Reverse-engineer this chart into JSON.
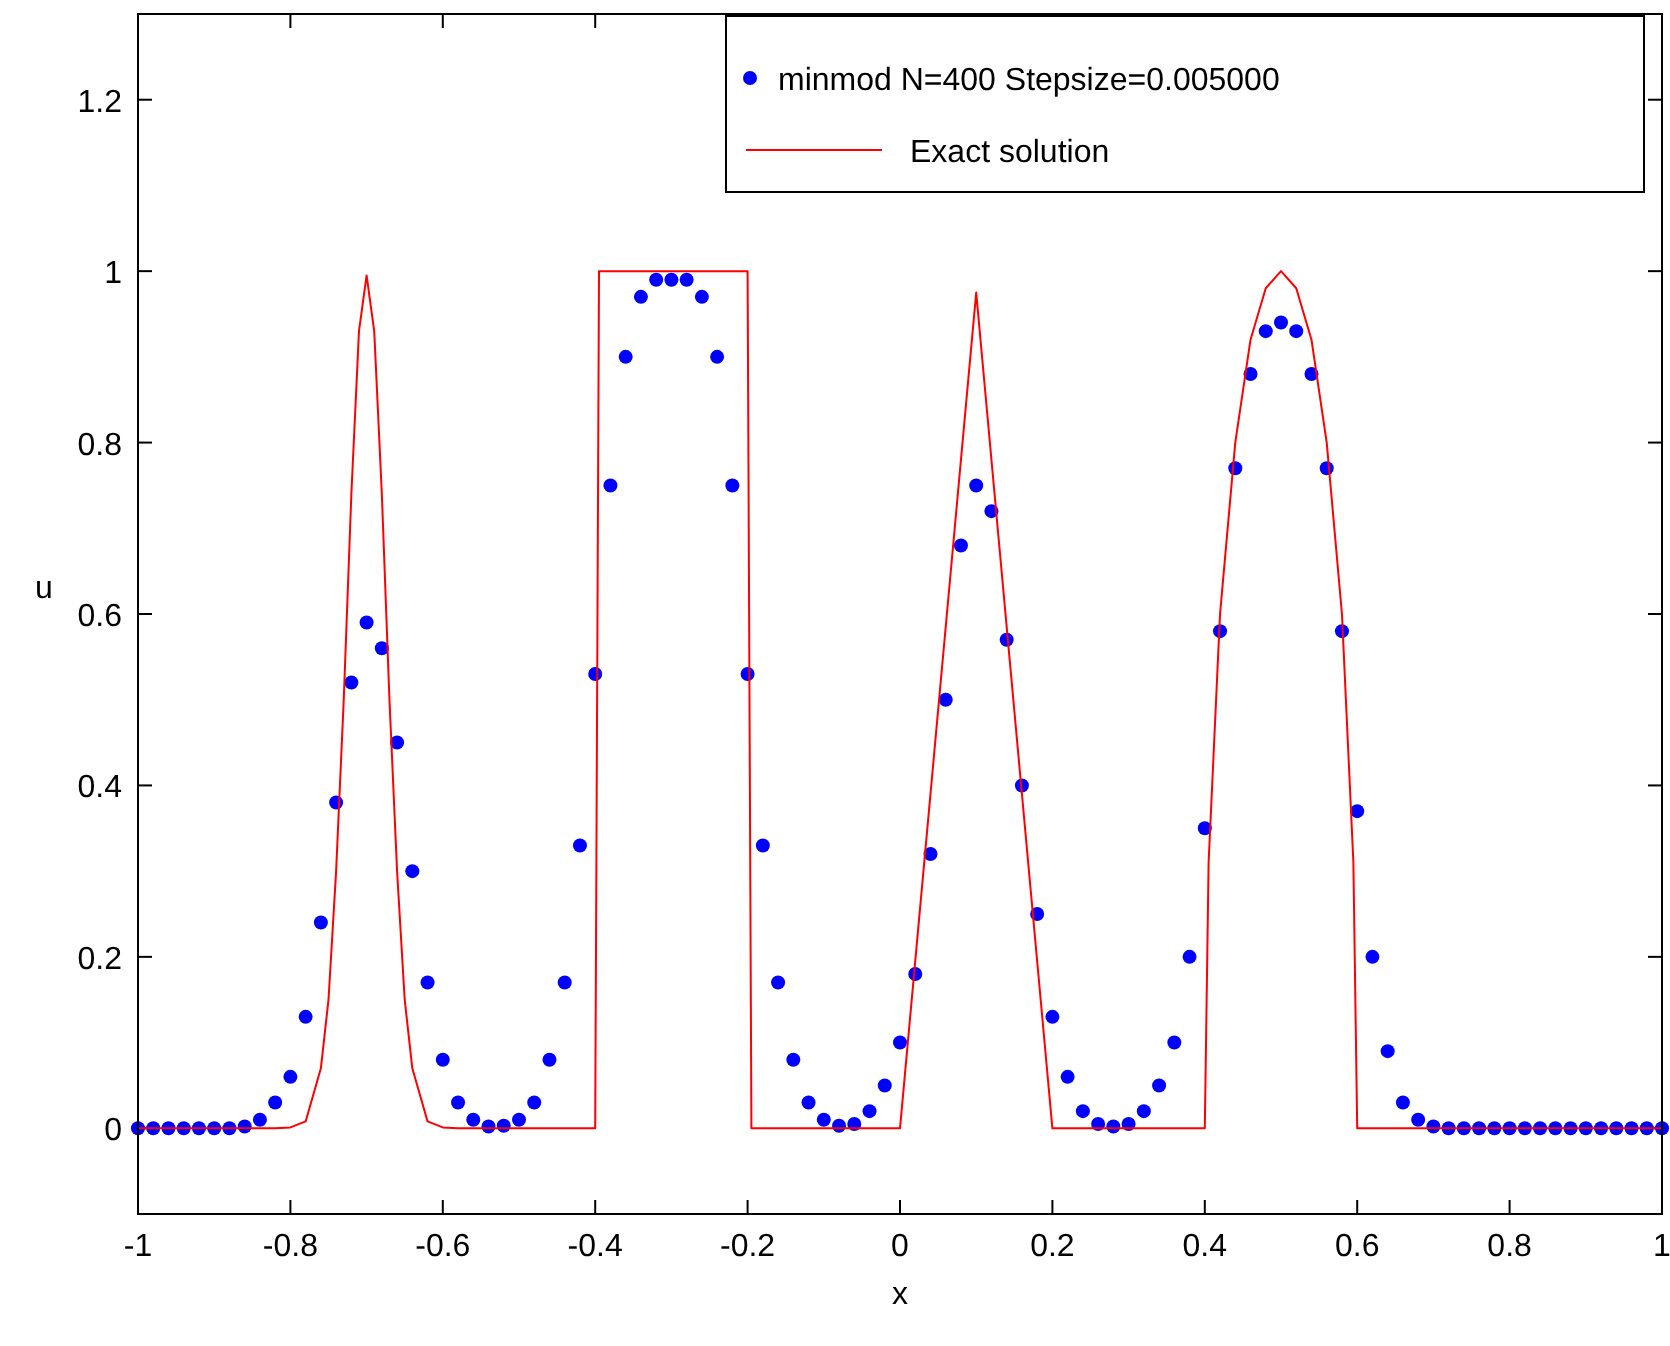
{
  "chart_data": {
    "type": "scatter",
    "xlabel": "x",
    "ylabel": "u",
    "xlim": [
      -1,
      1
    ],
    "ylim": [
      -0.1,
      1.3
    ],
    "xticks": [
      -1,
      -0.8,
      -0.6,
      -0.4,
      -0.2,
      0,
      0.2,
      0.4,
      0.6,
      0.8,
      1
    ],
    "yticks": [
      0,
      0.2,
      0.4,
      0.6,
      0.8,
      1,
      1.2
    ],
    "grid": false,
    "legend": "top right",
    "series": [
      {
        "name": "minmod N=400 Stepsize=0.005000",
        "marker": "circle",
        "color": "#0000ff",
        "x": [
          -1,
          -0.98,
          -0.96,
          -0.94,
          -0.92,
          -0.9,
          -0.88,
          -0.86,
          -0.84,
          -0.82,
          -0.8,
          -0.78,
          -0.76,
          -0.74,
          -0.72,
          -0.7,
          -0.68,
          -0.66,
          -0.64,
          -0.62,
          -0.6,
          -0.58,
          -0.56,
          -0.54,
          -0.52,
          -0.5,
          -0.48,
          -0.46,
          -0.44,
          -0.42,
          -0.4,
          -0.38,
          -0.36,
          -0.34,
          -0.32,
          -0.3,
          -0.28,
          -0.26,
          -0.24,
          -0.22,
          -0.2,
          -0.18,
          -0.16,
          -0.14,
          -0.12,
          -0.1,
          -0.08,
          -0.06,
          -0.04,
          -0.02,
          0,
          0.02,
          0.04,
          0.06,
          0.08,
          0.1,
          0.12,
          0.14,
          0.16,
          0.18,
          0.2,
          0.22,
          0.24,
          0.26,
          0.28,
          0.3,
          0.32,
          0.34,
          0.36,
          0.38,
          0.4,
          0.42,
          0.44,
          0.46,
          0.48,
          0.5,
          0.52,
          0.54,
          0.56,
          0.58,
          0.6,
          0.62,
          0.64,
          0.66,
          0.68,
          0.7,
          0.72,
          0.74,
          0.76,
          0.78,
          0.8,
          0.82,
          0.84,
          0.86,
          0.88,
          0.9,
          0.92,
          0.94,
          0.96,
          0.98,
          1
        ],
        "values": [
          0,
          0,
          0,
          0,
          0,
          0,
          0,
          0.002,
          0.01,
          0.03,
          0.06,
          0.13,
          0.24,
          0.38,
          0.52,
          0.59,
          0.56,
          0.45,
          0.3,
          0.17,
          0.08,
          0.03,
          0.01,
          0.002,
          0.003,
          0.01,
          0.03,
          0.08,
          0.17,
          0.33,
          0.53,
          0.75,
          0.9,
          0.97,
          0.99,
          0.99,
          0.99,
          0.97,
          0.9,
          0.75,
          0.53,
          0.33,
          0.17,
          0.08,
          0.03,
          0.01,
          0.003,
          0.005,
          0.02,
          0.05,
          0.1,
          0.18,
          0.32,
          0.5,
          0.68,
          0.75,
          0.72,
          0.57,
          0.4,
          0.25,
          0.13,
          0.06,
          0.02,
          0.005,
          0.002,
          0.005,
          0.02,
          0.05,
          0.1,
          0.2,
          0.35,
          0.58,
          0.77,
          0.88,
          0.93,
          0.94,
          0.93,
          0.88,
          0.77,
          0.58,
          0.37,
          0.2,
          0.09,
          0.03,
          0.01,
          0.002,
          0,
          0,
          0,
          0,
          0,
          0,
          0,
          0,
          0,
          0,
          0,
          0,
          0,
          0,
          0
        ]
      },
      {
        "name": "Exact solution",
        "type": "line",
        "marker": "none",
        "line_style": "solid",
        "color": "#ff0000",
        "x": [
          -1,
          -0.82,
          -0.8,
          -0.78,
          -0.76,
          -0.75,
          -0.74,
          -0.73,
          -0.72,
          -0.71,
          -0.7,
          -0.69,
          -0.68,
          -0.67,
          -0.66,
          -0.65,
          -0.64,
          -0.62,
          -0.6,
          -0.58,
          -0.4,
          -0.395,
          -0.2,
          -0.195,
          0,
          0.1,
          0.2,
          0.4,
          0.405,
          0.42,
          0.44,
          0.46,
          0.48,
          0.5,
          0.52,
          0.54,
          0.56,
          0.58,
          0.595,
          0.6,
          1
        ],
        "values": [
          0,
          0,
          0.001,
          0.008,
          0.07,
          0.15,
          0.3,
          0.5,
          0.74,
          0.93,
          0.995,
          0.93,
          0.74,
          0.5,
          0.3,
          0.15,
          0.07,
          0.008,
          0.001,
          0,
          0,
          1,
          1,
          0,
          0,
          0.975,
          0,
          0,
          0.31,
          0.6,
          0.8,
          0.92,
          0.98,
          1,
          0.98,
          0.92,
          0.8,
          0.6,
          0.31,
          0,
          0
        ]
      }
    ]
  }
}
